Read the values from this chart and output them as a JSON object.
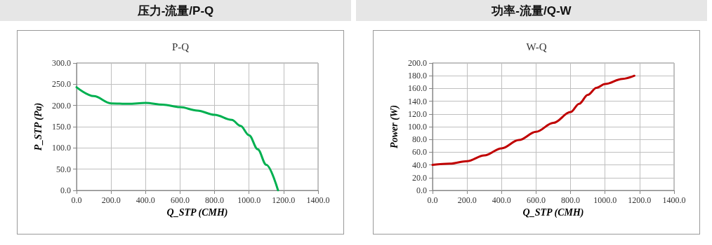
{
  "chart_data": [
    {
      "type": "line",
      "title": "压力-流量/P-Q",
      "subtitle": "P-Q",
      "xlabel": "Q_STP (CMH)",
      "ylabel": "P_STP (Pa)",
      "x": [
        0,
        100,
        200,
        300,
        400,
        500,
        600,
        700,
        800,
        900,
        950,
        1000,
        1050,
        1100,
        1168
      ],
      "series": [
        {
          "color": "#00b050",
          "values": [
            243,
            222,
            205,
            204,
            206,
            202,
            196,
            188,
            178,
            166,
            152,
            130,
            97,
            60,
            0
          ]
        }
      ],
      "xlim": [
        0,
        1400
      ],
      "xticks": [
        {
          "value": 0,
          "label": "0.0"
        },
        {
          "value": 200,
          "label": "200.0"
        },
        {
          "value": 400,
          "label": "400.0"
        },
        {
          "value": 600,
          "label": "600.0"
        },
        {
          "value": 800,
          "label": "800.0"
        },
        {
          "value": 1000,
          "label": "1000.0"
        },
        {
          "value": 1200,
          "label": "1200.0"
        },
        {
          "value": 1400,
          "label": "1400.0"
        }
      ],
      "ylim": [
        0,
        300
      ],
      "yticks": [
        {
          "value": 0,
          "label": "0.0"
        },
        {
          "value": 50,
          "label": "50.0"
        },
        {
          "value": 100,
          "label": "100.0"
        },
        {
          "value": 150,
          "label": "150.0"
        },
        {
          "value": 200,
          "label": "200.0"
        },
        {
          "value": 250,
          "label": "250.0"
        },
        {
          "value": 300,
          "label": "300.0"
        }
      ],
      "grid": true,
      "marker": "none",
      "line_style": "solid"
    },
    {
      "type": "line",
      "title": "功率-流量/Q-W",
      "subtitle": "W-Q",
      "xlabel": "Q_STP (CMH)",
      "ylabel": "Power (W)",
      "x": [
        0,
        100,
        200,
        300,
        400,
        500,
        600,
        700,
        800,
        850,
        900,
        950,
        1000,
        1100,
        1170
      ],
      "series": [
        {
          "color": "#c00000",
          "values": [
            40,
            42,
            46,
            55,
            66,
            79,
            92,
            106,
            123,
            136,
            150,
            161,
            167,
            175,
            180
          ]
        }
      ],
      "xlim": [
        0,
        1400
      ],
      "xticks": [
        {
          "value": 0,
          "label": "0.0"
        },
        {
          "value": 200,
          "label": "200.0"
        },
        {
          "value": 400,
          "label": "400.0"
        },
        {
          "value": 600,
          "label": "600.0"
        },
        {
          "value": 800,
          "label": "800.0"
        },
        {
          "value": 1000,
          "label": "1000.0"
        },
        {
          "value": 1200,
          "label": "1200.0"
        },
        {
          "value": 1400,
          "label": "1400.0"
        }
      ],
      "ylim": [
        0,
        200
      ],
      "yticks": [
        {
          "value": 0,
          "label": "0.0"
        },
        {
          "value": 20,
          "label": "20.0"
        },
        {
          "value": 40,
          "label": "40.0"
        },
        {
          "value": 60,
          "label": "60.0"
        },
        {
          "value": 80,
          "label": "80.0"
        },
        {
          "value": 100,
          "label": "100.0"
        },
        {
          "value": 120,
          "label": "120.0"
        },
        {
          "value": 140,
          "label": "140.0"
        },
        {
          "value": 160,
          "label": "160.0"
        },
        {
          "value": 180,
          "label": "180.0"
        },
        {
          "value": 200,
          "label": "200.0"
        }
      ],
      "grid": true,
      "marker": "none",
      "line_style": "solid"
    }
  ]
}
